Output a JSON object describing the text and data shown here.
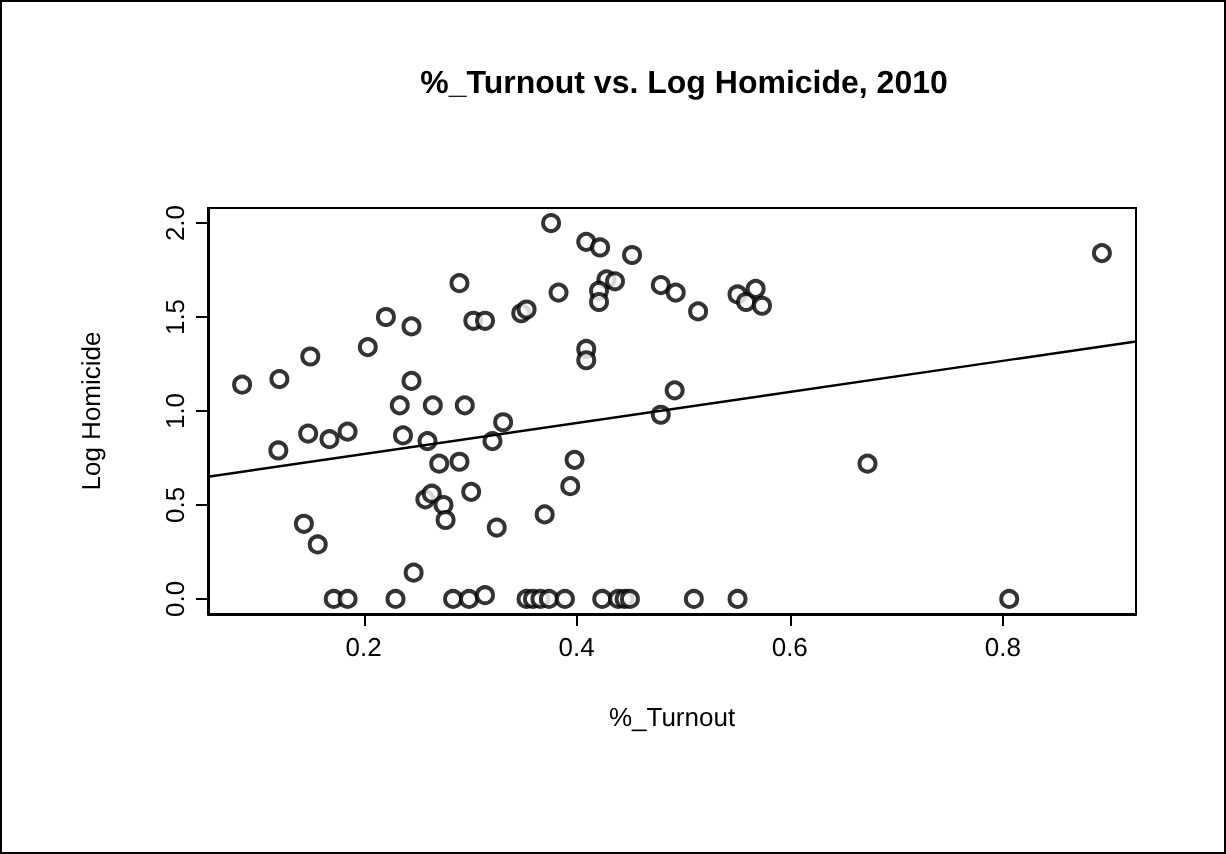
{
  "chart_data": {
    "type": "scatter",
    "title": "%_Turnout vs. Log Homicide, 2010",
    "xlabel": "%_Turnout",
    "ylabel": "Log Homicide",
    "xlim": [
      0.054,
      0.925
    ],
    "ylim": [
      -0.08,
      2.08
    ],
    "xticks": [
      0.2,
      0.4,
      0.6,
      0.8
    ],
    "yticks": [
      {
        "value": 0,
        "label": "0.0"
      },
      {
        "value": 0.5,
        "label": "0.5"
      },
      {
        "value": 1,
        "label": "1.0"
      },
      {
        "value": 1.5,
        "label": "1.5"
      },
      {
        "value": 2,
        "label": "2.0"
      }
    ],
    "grid": false,
    "marker": "circle",
    "series": [
      {
        "type": "scatter",
        "color": "#000000",
        "x": [
          0.086,
          0.121,
          0.15,
          0.12,
          0.148,
          0.168,
          0.185,
          0.144,
          0.157,
          0.172,
          0.185,
          0.23,
          0.204,
          0.221,
          0.245,
          0.245,
          0.234,
          0.265,
          0.237,
          0.26,
          0.271,
          0.29,
          0.258,
          0.264,
          0.275,
          0.277,
          0.301,
          0.325,
          0.247,
          0.284,
          0.299,
          0.314,
          0.29,
          0.303,
          0.314,
          0.295,
          0.321,
          0.331,
          0.348,
          0.376,
          0.409,
          0.422,
          0.452,
          0.428,
          0.436,
          0.383,
          0.421,
          0.421,
          0.479,
          0.493,
          0.514,
          0.551,
          0.559,
          0.568,
          0.574,
          0.353,
          0.409,
          0.409,
          0.492,
          0.479,
          0.398,
          0.394,
          0.37,
          0.353,
          0.359,
          0.366,
          0.374,
          0.389,
          0.424,
          0.439,
          0.445,
          0.45,
          0.51,
          0.551,
          0.893,
          0.673,
          0.806
        ],
        "values": [
          1.14,
          1.17,
          1.29,
          0.79,
          0.88,
          0.85,
          0.89,
          0.4,
          0.29,
          0,
          0,
          0,
          1.34,
          1.5,
          1.45,
          1.16,
          1.03,
          1.03,
          0.87,
          0.84,
          0.72,
          0.73,
          0.53,
          0.56,
          0.5,
          0.42,
          0.57,
          0.38,
          0.14,
          0,
          0,
          0.02,
          1.68,
          1.48,
          1.48,
          1.03,
          0.84,
          0.94,
          1.52,
          2.0,
          1.9,
          1.87,
          1.83,
          1.7,
          1.69,
          1.63,
          1.64,
          1.58,
          1.67,
          1.63,
          1.53,
          1.62,
          1.58,
          1.65,
          1.56,
          1.54,
          1.33,
          1.27,
          1.11,
          0.98,
          0.74,
          0.6,
          0.45,
          0,
          0,
          0,
          0,
          0,
          0,
          0,
          0,
          0,
          0,
          0,
          1.84,
          0.72,
          0
        ]
      },
      {
        "type": "line",
        "color": "#000000",
        "x": [
          0.054,
          0.925
        ],
        "values": [
          0.65,
          1.37
        ],
        "marker": "none",
        "line_style": "solid"
      }
    ]
  }
}
